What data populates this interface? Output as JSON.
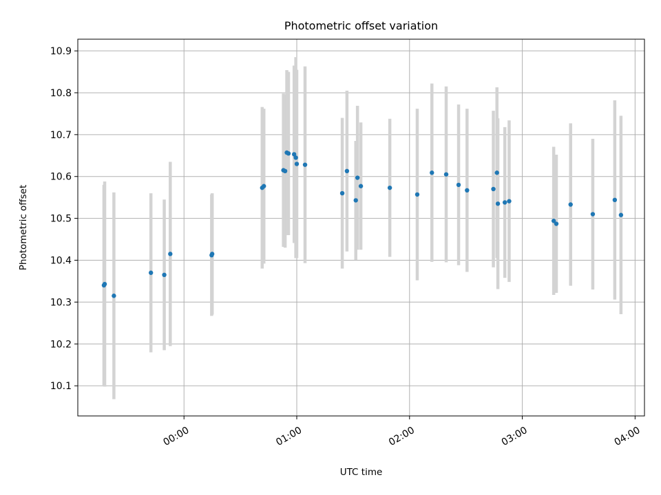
{
  "chart_data": {
    "type": "scatter",
    "title": "Photometric offset variation",
    "xlabel": "UTC time",
    "ylabel": "Photometric offset",
    "x_unit": "minutes after 00:00 UTC",
    "xlim": [
      -56.5,
      245
    ],
    "ylim": [
      10.028,
      10.928
    ],
    "xticks": [
      {
        "value": 0,
        "label": "00:00"
      },
      {
        "value": 60,
        "label": "01:00"
      },
      {
        "value": 120,
        "label": "02:00"
      },
      {
        "value": 180,
        "label": "03:00"
      },
      {
        "value": 240,
        "label": "04:00"
      }
    ],
    "yticks": [
      {
        "value": 10.1,
        "label": "10.1"
      },
      {
        "value": 10.2,
        "label": "10.2"
      },
      {
        "value": 10.3,
        "label": "10.3"
      },
      {
        "value": 10.4,
        "label": "10.4"
      },
      {
        "value": 10.5,
        "label": "10.5"
      },
      {
        "value": 10.6,
        "label": "10.6"
      },
      {
        "value": 10.7,
        "label": "10.7"
      },
      {
        "value": 10.8,
        "label": "10.8"
      },
      {
        "value": 10.9,
        "label": "10.9"
      }
    ],
    "grid": true,
    "series": [
      {
        "name": "Photometric offset",
        "marker_color": "#1f77b4",
        "errorbar_color": "#d3d3d3",
        "points": [
          {
            "x": -42.6,
            "y": 10.34,
            "err": 0.24
          },
          {
            "x": -42.2,
            "y": 10.343,
            "err": 0.245
          },
          {
            "x": -37.3,
            "y": 10.315,
            "err": 0.247
          },
          {
            "x": -17.6,
            "y": 10.37,
            "err": 0.19
          },
          {
            "x": -10.5,
            "y": 10.365,
            "err": 0.18
          },
          {
            "x": -7.3,
            "y": 10.415,
            "err": 0.22
          },
          {
            "x": 14.7,
            "y": 10.412,
            "err": 0.145
          },
          {
            "x": 15.0,
            "y": 10.415,
            "err": 0.145
          },
          {
            "x": 41.6,
            "y": 10.573,
            "err": 0.193
          },
          {
            "x": 42.5,
            "y": 10.577,
            "err": 0.185
          },
          {
            "x": 52.9,
            "y": 10.615,
            "err": 0.183
          },
          {
            "x": 53.8,
            "y": 10.613,
            "err": 0.183
          },
          {
            "x": 54.7,
            "y": 10.657,
            "err": 0.197
          },
          {
            "x": 55.6,
            "y": 10.655,
            "err": 0.195
          },
          {
            "x": 58.6,
            "y": 10.653,
            "err": 0.212
          },
          {
            "x": 59.5,
            "y": 10.645,
            "err": 0.24
          },
          {
            "x": 60.0,
            "y": 10.63,
            "err": 0.225
          },
          {
            "x": 64.4,
            "y": 10.628,
            "err": 0.235
          },
          {
            "x": 84.2,
            "y": 10.56,
            "err": 0.18
          },
          {
            "x": 86.7,
            "y": 10.613,
            "err": 0.192
          },
          {
            "x": 91.4,
            "y": 10.543,
            "err": 0.142
          },
          {
            "x": 92.3,
            "y": 10.597,
            "err": 0.172
          },
          {
            "x": 94.1,
            "y": 10.577,
            "err": 0.152
          },
          {
            "x": 109.5,
            "y": 10.573,
            "err": 0.165
          },
          {
            "x": 124.1,
            "y": 10.557,
            "err": 0.205
          },
          {
            "x": 131.9,
            "y": 10.609,
            "err": 0.213
          },
          {
            "x": 139.5,
            "y": 10.605,
            "err": 0.21
          },
          {
            "x": 146.1,
            "y": 10.58,
            "err": 0.192
          },
          {
            "x": 150.6,
            "y": 10.567,
            "err": 0.195
          },
          {
            "x": 164.6,
            "y": 10.57,
            "err": 0.187
          },
          {
            "x": 166.5,
            "y": 10.609,
            "err": 0.204
          },
          {
            "x": 167.0,
            "y": 10.535,
            "err": 0.204
          },
          {
            "x": 170.7,
            "y": 10.538,
            "err": 0.18
          },
          {
            "x": 173.0,
            "y": 10.541,
            "err": 0.193
          },
          {
            "x": 196.7,
            "y": 10.494,
            "err": 0.177
          },
          {
            "x": 198.1,
            "y": 10.487,
            "err": 0.165
          },
          {
            "x": 205.7,
            "y": 10.533,
            "err": 0.194
          },
          {
            "x": 217.5,
            "y": 10.51,
            "err": 0.18
          },
          {
            "x": 229.2,
            "y": 10.544,
            "err": 0.238
          },
          {
            "x": 232.5,
            "y": 10.508,
            "err": 0.237
          }
        ]
      }
    ]
  }
}
